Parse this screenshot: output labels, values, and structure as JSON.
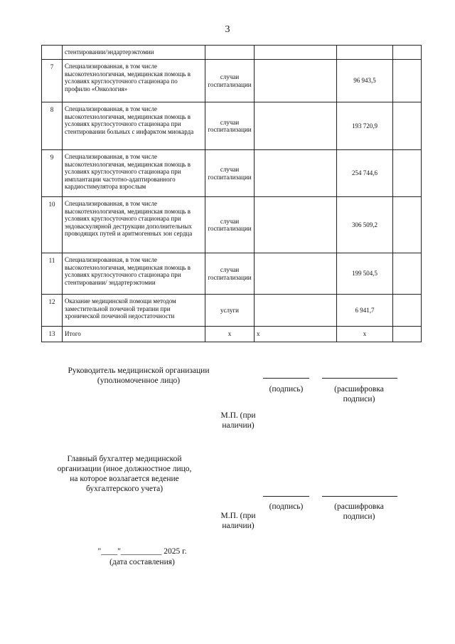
{
  "page_number": "3",
  "table": {
    "continued_text": "стентировании/эндартерэктомии",
    "rows": [
      {
        "num": "7",
        "desc": "Специализированная, в том числе высокотехнологичная, медицинская помощь в условиях круглосуточного стационара по профилю «Онкология»",
        "unit": "случаи госпитализации",
        "col4": "",
        "value": "96 943,5",
        "col6": "",
        "h": 60
      },
      {
        "num": "8",
        "desc": "Специализированная, в том числе высокотехнологичная, медицинская помощь в условиях круглосуточного стационара при стентировании больных с инфарктом миокарда",
        "unit": "случаи госпитализации",
        "col4": "",
        "value": "193 720,9",
        "col6": "",
        "h": 67
      },
      {
        "num": "9",
        "desc": "Специализированная, в том числе высокотехнологичная, медицинская помощь в условиях круглосуточного стационара при имплантации частотно-адаптированного кардиостимулятора взрослым",
        "unit": "случаи госпитализации",
        "col4": "",
        "value": "254 744,6",
        "col6": "",
        "h": 66
      },
      {
        "num": "10",
        "desc": "Специализированная, в том числе высокотехнологичная, медицинская помощь в условиях круглосуточного стационара при эндоваскулярной деструкции дополнительных проводящих путей и аритмогенных зон сердца",
        "unit": "случаи госпитализации",
        "col4": "",
        "value": "306 509,2",
        "col6": "",
        "h": 79
      },
      {
        "num": "11",
        "desc": "Специализированная, в том числе высокотехнологичная, медицинская помощь в условиях круглосуточного стационара при стентировании/ эндартерэктомии",
        "unit": "случаи госпитализации",
        "col4": "",
        "value": "199 504,5",
        "col6": "",
        "h": 58
      },
      {
        "num": "12",
        "desc": "Оказание медицинской помощи методом заместительной почечной терапии при хронической почечной недостаточности",
        "unit": "услуги",
        "col4": "",
        "value": "6 941,7",
        "col6": "",
        "h": 45
      },
      {
        "num": "13",
        "desc": "Итого",
        "unit": "x",
        "col4": "x",
        "value": "x",
        "col6": "",
        "h": 22
      }
    ]
  },
  "signatures": {
    "head_title": "Руководитель медицинской организации\n(уполномоченное лицо)",
    "accountant_title": "Главный бухгалтер медицинской\nорганизации (иное должностное лицо,\nна которое возлагается ведение\nбухгалтерского учета)",
    "signature_label": "(подпись)",
    "decoding_label": "(расшифровка\nподписи)",
    "stamp_label": "М.П. (при\nналичии)",
    "date_line": "\"____\"__________ 2025 г.",
    "date_label": "(дата составления)"
  }
}
